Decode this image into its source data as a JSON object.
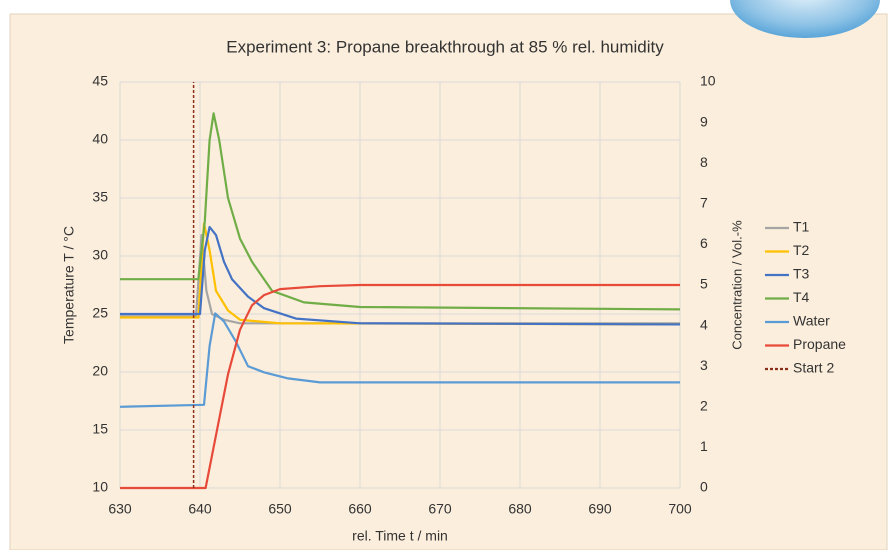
{
  "chart_data": {
    "type": "line",
    "title": "Experiment 3: Propane breakthrough at 85 % rel. humidity",
    "x_label": "rel. Time t  / min",
    "y_label": "Temperature T / °C",
    "y2_label": "Concentration / Vol.-%",
    "xlim": [
      630,
      700
    ],
    "xticks": [
      630,
      640,
      650,
      660,
      670,
      680,
      690,
      700
    ],
    "ylim": [
      10,
      45
    ],
    "yticks": [
      10,
      15,
      20,
      25,
      30,
      35,
      40,
      45
    ],
    "y2lim": [
      0,
      10
    ],
    "y2ticks": [
      0,
      1,
      2,
      3,
      4,
      5,
      6,
      7,
      8,
      9,
      10
    ],
    "grid": true,
    "legend": "right",
    "series": [
      {
        "name": "T1",
        "color": "#a5a5a5",
        "x": [
          630,
          639.5,
          640.2,
          640.8,
          641.5,
          643,
          645,
          660,
          700
        ],
        "values": [
          24.8,
          24.8,
          31.8,
          27,
          25,
          24.5,
          24.2,
          24.2,
          24.2
        ]
      },
      {
        "name": "T2",
        "color": "#ffc000",
        "x": [
          630,
          639.8,
          640.5,
          641.2,
          642,
          643.5,
          645,
          650,
          700
        ],
        "values": [
          24.7,
          24.7,
          32.8,
          30.5,
          27,
          25.3,
          24.5,
          24.2,
          24.1
        ]
      },
      {
        "name": "T3",
        "color": "#4472c4",
        "x": [
          630,
          640,
          640.6,
          641.2,
          642,
          643,
          644,
          646,
          648,
          652,
          660,
          700
        ],
        "values": [
          25,
          25,
          30.5,
          32.5,
          31.8,
          29.5,
          28,
          26.5,
          25.5,
          24.6,
          24.2,
          24.1
        ]
      },
      {
        "name": "T4",
        "color": "#70ad47",
        "x": [
          630,
          639.8,
          640.6,
          641.2,
          641.7,
          642.4,
          643.5,
          645,
          646.5,
          649,
          653,
          660,
          700
        ],
        "values": [
          28,
          28,
          33,
          40,
          42.3,
          40,
          35,
          31.5,
          29.5,
          27,
          26,
          25.6,
          25.4
        ]
      },
      {
        "name": "Water",
        "color": "#5b9bd5",
        "axis": "y2",
        "x": [
          630,
          640.5,
          641.2,
          641.9,
          643,
          644.5,
          646,
          648,
          651,
          655,
          700
        ],
        "values": [
          2.0,
          2.05,
          3.5,
          4.3,
          4.1,
          3.6,
          3.0,
          2.85,
          2.7,
          2.6,
          2.6
        ]
      },
      {
        "name": "Propane",
        "color": "#e84a3a",
        "axis": "y2",
        "x": [
          630,
          640.7,
          642,
          643.5,
          645,
          646.5,
          648,
          650,
          655,
          660,
          700
        ],
        "values": [
          0,
          0,
          1.3,
          2.8,
          3.9,
          4.5,
          4.75,
          4.9,
          4.97,
          5.0,
          5.0
        ]
      },
      {
        "name": "Start 2",
        "color": "#8b2e1a",
        "dashed": true,
        "x": [
          639.2,
          639.2
        ],
        "values": [
          10,
          45
        ]
      }
    ]
  }
}
